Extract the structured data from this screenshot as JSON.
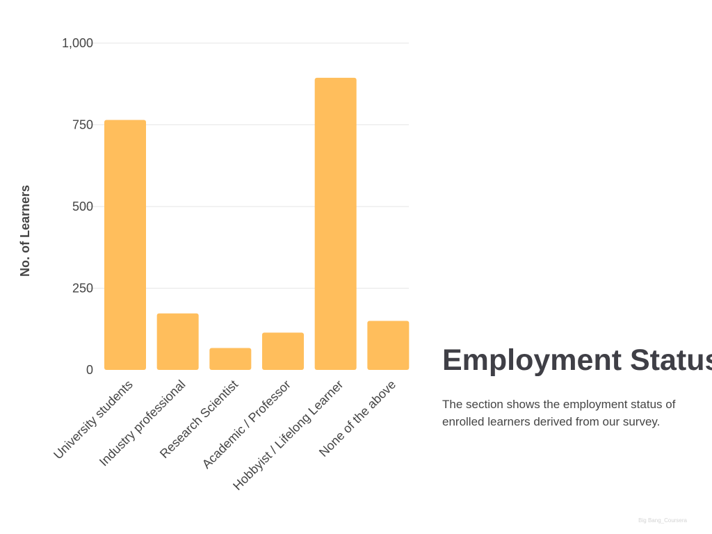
{
  "chart_data": {
    "type": "bar",
    "title": "Employment Status",
    "ylabel": "No. of Learners",
    "xlabel": "",
    "categories": [
      "University students",
      "Industry professional",
      "Research Scientist",
      "Academic / Professor",
      "Hobbyist / Lifelong Learner",
      "None of the above"
    ],
    "values": [
      765,
      173,
      67,
      114,
      894,
      150
    ],
    "ylim": [
      0,
      1000
    ],
    "yticks": [
      0,
      250,
      500,
      750,
      1000
    ],
    "ytick_labels": [
      "0",
      "250",
      "500",
      "750",
      "1,000"
    ],
    "grid": true,
    "legend": "none",
    "bar_color": "#FFBE5C"
  },
  "description": "The section shows the employment status of enrolled learners derived from our survey.",
  "watermark": "Big Bang_Coursera"
}
